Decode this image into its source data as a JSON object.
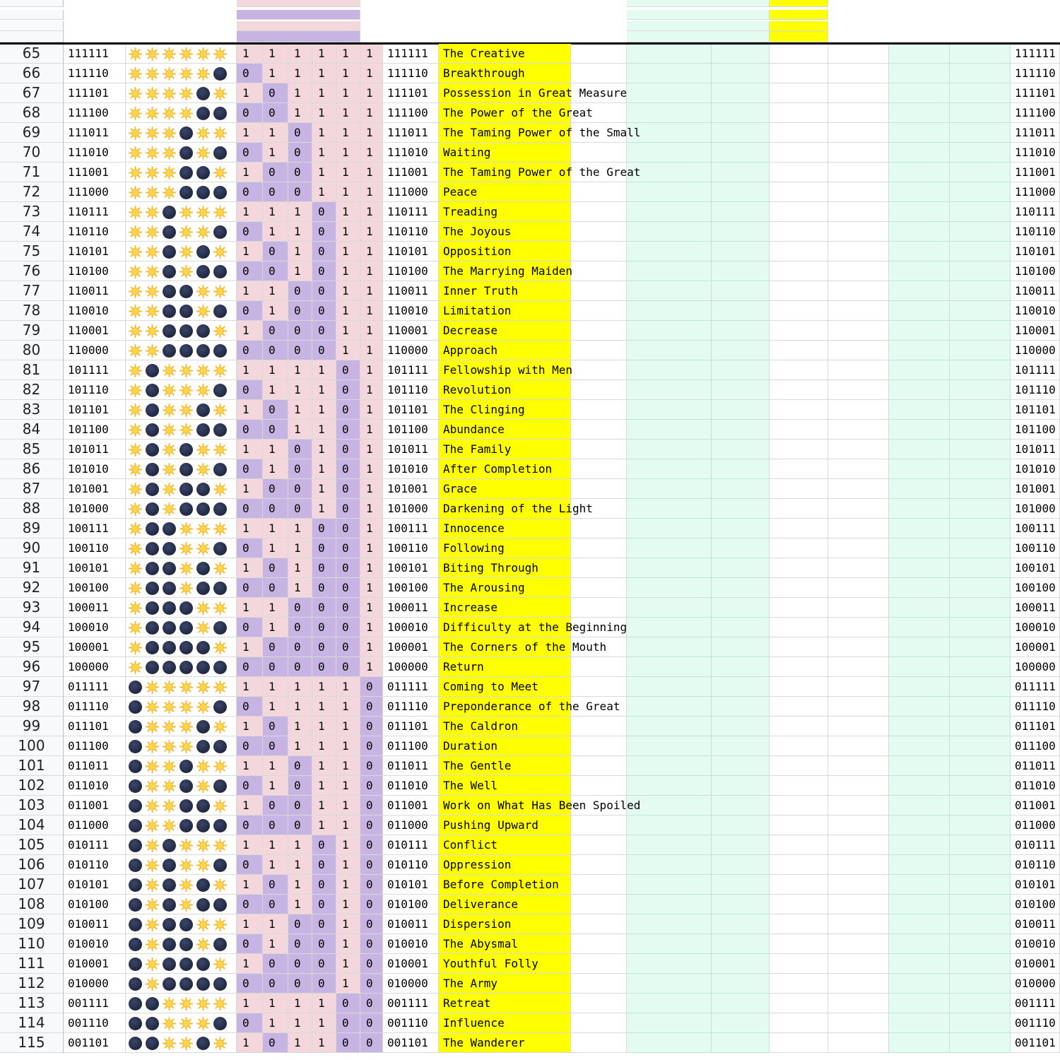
{
  "colors": {
    "pink": "#f4d7dc",
    "lilac": "#c7b4e2",
    "yellow": "#ffff00",
    "mint": "#e4fbf1",
    "mint_border": "#bfe6d1",
    "sun": "#f5b82e",
    "moon": "#242c47"
  },
  "icons": {
    "one": "sun-emoji-icon",
    "zero": "new-moon-emoji-icon"
  },
  "rows": [
    {
      "n": "65",
      "code": "111111",
      "name": "The Creative"
    },
    {
      "n": "66",
      "code": "111110",
      "name": "Breakthrough"
    },
    {
      "n": "67",
      "code": "111101",
      "name": "Possession in Great Measure"
    },
    {
      "n": "68",
      "code": "111100",
      "name": "The Power of the Great"
    },
    {
      "n": "69",
      "code": "111011",
      "name": "The Taming Power of the Small"
    },
    {
      "n": "70",
      "code": "111010",
      "name": "Waiting"
    },
    {
      "n": "71",
      "code": "111001",
      "name": "The Taming Power of the Great"
    },
    {
      "n": "72",
      "code": "111000",
      "name": "Peace"
    },
    {
      "n": "73",
      "code": "110111",
      "name": "Treading"
    },
    {
      "n": "74",
      "code": "110110",
      "name": "The Joyous"
    },
    {
      "n": "75",
      "code": "110101",
      "name": "Opposition"
    },
    {
      "n": "76",
      "code": "110100",
      "name": "The Marrying Maiden"
    },
    {
      "n": "77",
      "code": "110011",
      "name": "Inner Truth"
    },
    {
      "n": "78",
      "code": "110010",
      "name": "Limitation"
    },
    {
      "n": "79",
      "code": "110001",
      "name": "Decrease"
    },
    {
      "n": "80",
      "code": "110000",
      "name": "Approach"
    },
    {
      "n": "81",
      "code": "101111",
      "name": "Fellowship with Men"
    },
    {
      "n": "82",
      "code": "101110",
      "name": "Revolution"
    },
    {
      "n": "83",
      "code": "101101",
      "name": "The Clinging"
    },
    {
      "n": "84",
      "code": "101100",
      "name": "Abundance"
    },
    {
      "n": "85",
      "code": "101011",
      "name": "The Family"
    },
    {
      "n": "86",
      "code": "101010",
      "name": "After Completion"
    },
    {
      "n": "87",
      "code": "101001",
      "name": "Grace"
    },
    {
      "n": "88",
      "code": "101000",
      "name": "Darkening of the Light"
    },
    {
      "n": "89",
      "code": "100111",
      "name": "Innocence"
    },
    {
      "n": "90",
      "code": "100110",
      "name": "Following"
    },
    {
      "n": "91",
      "code": "100101",
      "name": "Biting Through"
    },
    {
      "n": "92",
      "code": "100100",
      "name": "The Arousing"
    },
    {
      "n": "93",
      "code": "100011",
      "name": "Increase"
    },
    {
      "n": "94",
      "code": "100010",
      "name": "Difficulty at the Beginning"
    },
    {
      "n": "95",
      "code": "100001",
      "name": "The Corners of the Mouth"
    },
    {
      "n": "96",
      "code": "100000",
      "name": "Return"
    },
    {
      "n": "97",
      "code": "011111",
      "name": "Coming to Meet"
    },
    {
      "n": "98",
      "code": "011110",
      "name": "Preponderance of the Great"
    },
    {
      "n": "99",
      "code": "011101",
      "name": "The Caldron"
    },
    {
      "n": "100",
      "code": "011100",
      "name": "Duration"
    },
    {
      "n": "101",
      "code": "011011",
      "name": "The Gentle"
    },
    {
      "n": "102",
      "code": "011010",
      "name": "The Well"
    },
    {
      "n": "103",
      "code": "011001",
      "name": "Work on What Has Been Spoiled"
    },
    {
      "n": "104",
      "code": "011000",
      "name": "Pushing Upward"
    },
    {
      "n": "105",
      "code": "010111",
      "name": "Conflict"
    },
    {
      "n": "106",
      "code": "010110",
      "name": "Oppression"
    },
    {
      "n": "107",
      "code": "010101",
      "name": "Before Completion"
    },
    {
      "n": "108",
      "code": "010100",
      "name": "Deliverance"
    },
    {
      "n": "109",
      "code": "010011",
      "name": "Dispersion"
    },
    {
      "n": "110",
      "code": "010010",
      "name": "The Abysmal"
    },
    {
      "n": "111",
      "code": "010001",
      "name": "Youthful Folly"
    },
    {
      "n": "112",
      "code": "010000",
      "name": "The Army"
    },
    {
      "n": "113",
      "code": "001111",
      "name": "Retreat"
    },
    {
      "n": "114",
      "code": "001110",
      "name": "Influence"
    },
    {
      "n": "115",
      "code": "001101",
      "name": "The Wanderer"
    }
  ]
}
